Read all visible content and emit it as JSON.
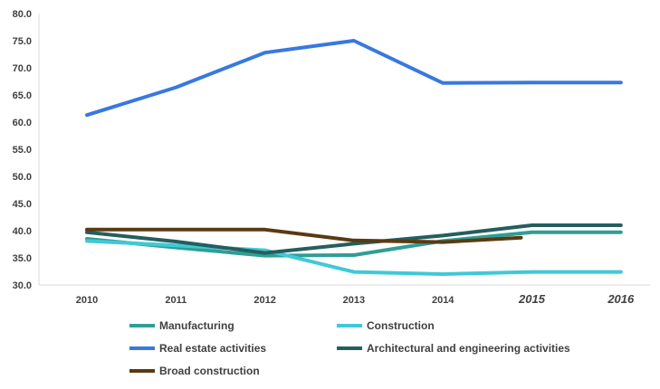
{
  "chart_data": {
    "type": "line",
    "title": "",
    "xlabel": "",
    "ylabel": "",
    "x": [
      "2010",
      "2011",
      "2012",
      "2013",
      "2014",
      "2015",
      "2016"
    ],
    "x_italic": [
      "2015",
      "2016"
    ],
    "ylim": [
      30.0,
      80.0
    ],
    "yticks": [
      "30.0",
      "35.0",
      "40.0",
      "45.0",
      "50.0",
      "55.0",
      "60.0",
      "65.0",
      "70.0",
      "75.0",
      "80.0"
    ],
    "grid": false,
    "legend_position": "bottom",
    "series": [
      {
        "name": "Manufacturing",
        "color": "#2e9e96",
        "values": [
          38.5,
          36.9,
          35.4,
          35.5,
          38.1,
          39.7,
          39.7
        ]
      },
      {
        "name": "Construction",
        "color": "#3fc9d6",
        "values": [
          38.1,
          37.3,
          36.4,
          32.4,
          32.0,
          32.4,
          32.4
        ]
      },
      {
        "name": "Real estate activities",
        "color": "#3878e0",
        "values": [
          61.3,
          66.4,
          72.8,
          75.0,
          67.2,
          67.3,
          67.3
        ]
      },
      {
        "name": "Architectural and engineering activities",
        "color": "#255e5e",
        "values": [
          39.7,
          38.0,
          35.9,
          37.6,
          39.1,
          41.0,
          41.0
        ]
      },
      {
        "name": "Broad construction",
        "color": "#5a3a12",
        "values": [
          40.2,
          40.2,
          40.2,
          38.2,
          37.9,
          38.7,
          null
        ]
      }
    ]
  }
}
